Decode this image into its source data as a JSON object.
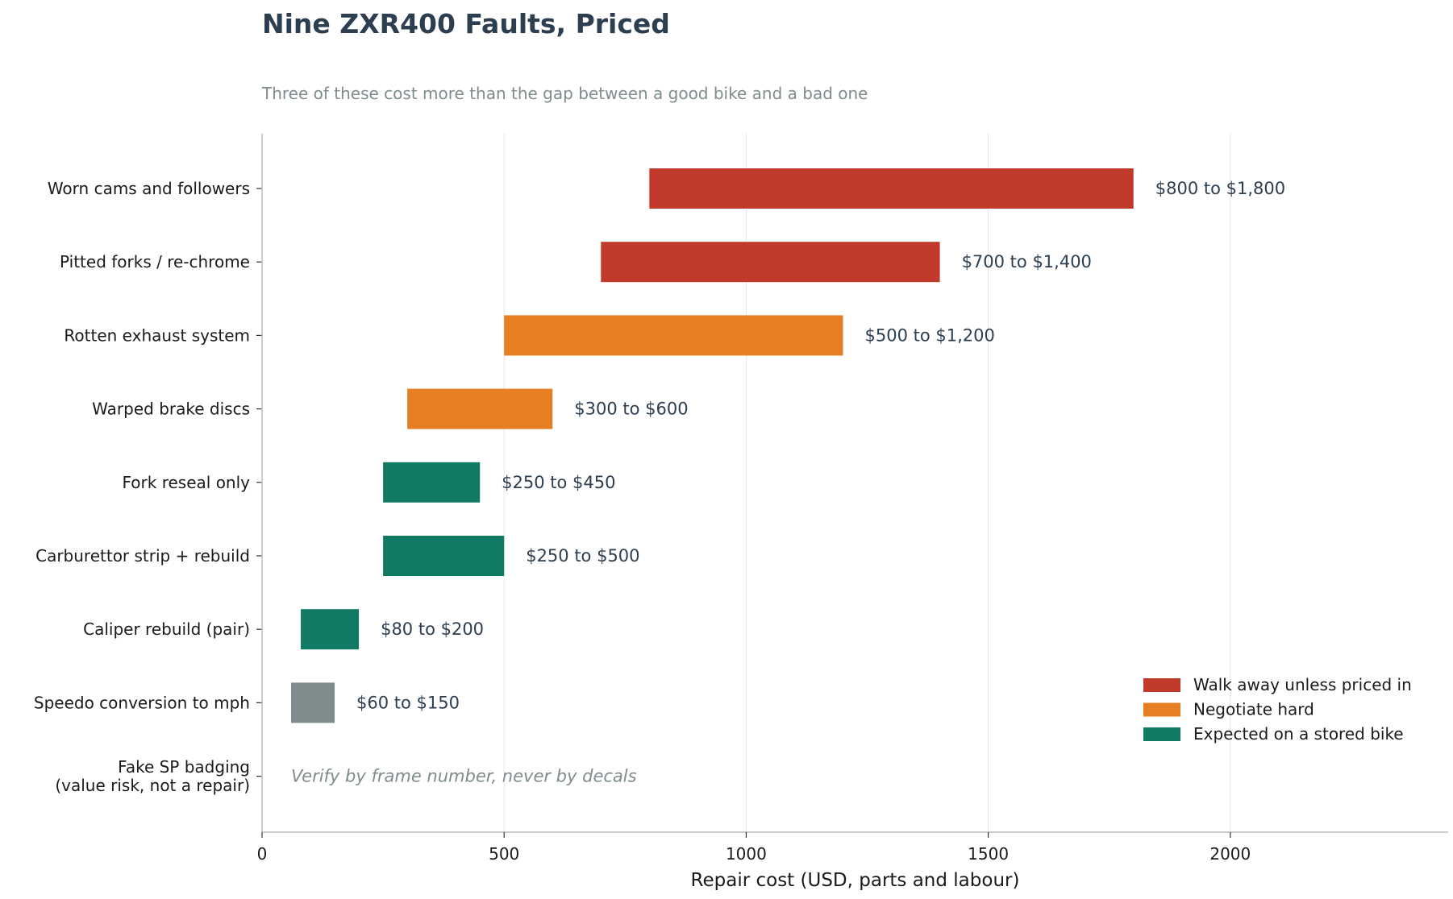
{
  "chart_data": {
    "type": "bar",
    "orientation": "horizontal",
    "title": "Nine ZXR400 Faults, Priced",
    "subtitle": "Three of these cost more than the gap between a good bike and a bad one",
    "xlabel": "Repair cost (USD, parts and labour)",
    "xlim": [
      0,
      2450
    ],
    "xticks": [
      0,
      500,
      1000,
      1500,
      2000
    ],
    "grid": "vertical",
    "legend_position": "bottom-right",
    "colors": {
      "walk_away": "#c0392b",
      "negotiate": "#e67e22",
      "expected": "#117a65",
      "other": "#7f8c8d"
    },
    "legend": [
      {
        "label": "Walk away unless priced in",
        "color_key": "walk_away"
      },
      {
        "label": "Negotiate hard",
        "color_key": "negotiate"
      },
      {
        "label": "Expected on a stored bike",
        "color_key": "expected"
      }
    ],
    "faults": [
      {
        "category": "Worn cams and followers",
        "low": 800,
        "high": 1800,
        "label": "$800 to $1,800",
        "color_key": "walk_away"
      },
      {
        "category": "Pitted forks / re-chrome",
        "low": 700,
        "high": 1400,
        "label": "$700 to $1,400",
        "color_key": "walk_away"
      },
      {
        "category": "Rotten exhaust system",
        "low": 500,
        "high": 1200,
        "label": "$500 to $1,200",
        "color_key": "negotiate"
      },
      {
        "category": "Warped brake discs",
        "low": 300,
        "high": 600,
        "label": "$300 to $600",
        "color_key": "negotiate"
      },
      {
        "category": "Fork reseal only",
        "low": 250,
        "high": 450,
        "label": "$250 to $450",
        "color_key": "expected"
      },
      {
        "category": "Carburettor strip + rebuild",
        "low": 250,
        "high": 500,
        "label": "$250 to $500",
        "color_key": "expected"
      },
      {
        "category": "Caliper rebuild (pair)",
        "low": 80,
        "high": 200,
        "label": "$80 to $200",
        "color_key": "expected"
      },
      {
        "category": "Speedo conversion to mph",
        "low": 60,
        "high": 150,
        "label": "$60 to $150",
        "color_key": "other"
      },
      {
        "category": [
          "Fake SP badging",
          "(value risk, not a repair)"
        ],
        "low": null,
        "high": null,
        "label": "",
        "note": "Verify by frame number, never by decals",
        "note_x": 60,
        "color_key": "other"
      }
    ]
  }
}
